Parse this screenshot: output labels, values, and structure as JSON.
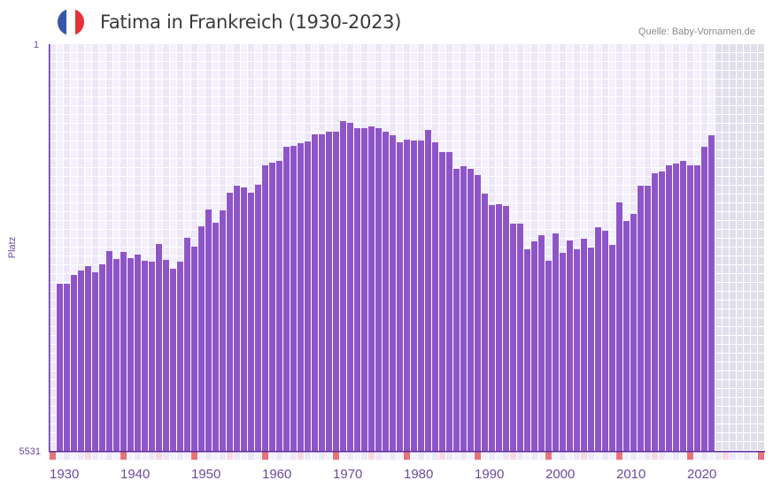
{
  "header": {
    "title": "Fatima in Frankreich (1930-2023)",
    "source": "Quelle: Baby-Vornamen.de",
    "flag_icon": "france-flag-icon",
    "flag_colors": [
      "#3a55a6",
      "#ffffff",
      "#e8303a"
    ]
  },
  "colors": {
    "bar": "#8e55c8",
    "axis": "#5b2d9a",
    "decade_marker": "#e8737a",
    "half_decade_marker": "#f5d8e0",
    "grid_a": "#ede7f8",
    "grid_b": "#f4f1fc",
    "future_shade": "#e2dfec"
  },
  "chart_data": {
    "type": "bar",
    "title": "Fatima in Frankreich (1930-2023)",
    "xlabel": "",
    "ylabel": "Platz",
    "ylim": [
      1,
      5531
    ],
    "y_inverted": true,
    "y_tick_labels": [
      "1",
      "5531"
    ],
    "x_range": [
      1930,
      2030
    ],
    "x_tick_labels": [
      "1930",
      "1940",
      "1950",
      "1960",
      "1970",
      "1980",
      "1990",
      "2000",
      "2010",
      "2020"
    ],
    "grid": true,
    "start_year": 1930,
    "values": [
      null,
      3259,
      3259,
      3139,
      3079,
      3019,
      3103,
      2994,
      2814,
      2922,
      2826,
      2910,
      2862,
      2946,
      2958,
      2718,
      2934,
      3055,
      2958,
      2634,
      2754,
      2478,
      2249,
      2429,
      2261,
      2021,
      1925,
      1949,
      2021,
      1912,
      1648,
      1612,
      1588,
      1396,
      1384,
      1347,
      1323,
      1227,
      1227,
      1191,
      1191,
      1047,
      1071,
      1143,
      1143,
      1119,
      1143,
      1191,
      1239,
      1335,
      1299,
      1311,
      1311,
      1167,
      1335,
      1468,
      1468,
      1696,
      1660,
      1696,
      1780,
      2033,
      2189,
      2177,
      2201,
      2441,
      2441,
      2790,
      2682,
      2598,
      2946,
      2574,
      2838,
      2670,
      2790,
      2646,
      2766,
      2490,
      2538,
      2730,
      2153,
      2405,
      2309,
      1925,
      1925,
      1756,
      1732,
      1648,
      1624,
      1588,
      1648,
      1648,
      1396,
      1239
    ]
  }
}
